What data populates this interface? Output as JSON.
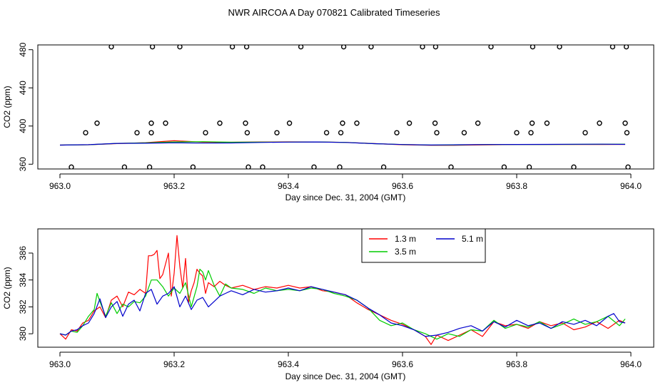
{
  "title": "NWR AIRCOA A  Day 070821  Calibrated Timeseries",
  "chart_data": [
    {
      "type": "line",
      "panel": "top",
      "xlabel": "Day since Dec. 31, 2004 (GMT)",
      "ylabel": "CO2 (ppm)",
      "xlim": [
        963.0,
        964.0
      ],
      "ylim": [
        355,
        485
      ],
      "xticks": [
        963.0,
        963.2,
        963.4,
        963.6,
        963.8,
        964.0
      ],
      "xtick_labels": [
        "963.0",
        "963.2",
        "963.4",
        "963.6",
        "963.8",
        "964.0"
      ],
      "yticks": [
        360,
        400,
        440,
        480
      ],
      "ytick_labels": [
        "360",
        "400",
        "440",
        "480"
      ],
      "grid": false,
      "series": [
        {
          "name": "1.3 m",
          "color": "#ff0000",
          "x": [
            963.0,
            963.05,
            963.1,
            963.15,
            963.2,
            963.25,
            963.3,
            963.35,
            963.4,
            963.45,
            963.5,
            963.55,
            963.6,
            963.65,
            963.7,
            963.75,
            963.8,
            963.85,
            963.9,
            963.95,
            963.99
          ],
          "values": [
            380,
            380.4,
            381.6,
            382.6,
            384.6,
            383.2,
            383.0,
            383.3,
            383.4,
            383.3,
            382.9,
            381.6,
            380.4,
            379.8,
            379.9,
            380.3,
            380.6,
            380.6,
            380.7,
            380.7,
            380.8
          ]
        },
        {
          "name": "3.5 m",
          "color": "#00cc00",
          "x": [
            963.0,
            963.05,
            963.1,
            963.15,
            963.2,
            963.25,
            963.3,
            963.35,
            963.4,
            963.45,
            963.5,
            963.55,
            963.6,
            963.65,
            963.7,
            963.75,
            963.8,
            963.85,
            963.9,
            963.95,
            963.99
          ],
          "values": [
            380,
            380.4,
            381.8,
            382.4,
            383.3,
            383.6,
            383.0,
            383.1,
            383.2,
            383.3,
            382.9,
            381.5,
            380.6,
            380.0,
            380.2,
            380.6,
            380.6,
            380.7,
            380.8,
            380.9,
            381.0
          ]
        },
        {
          "name": "5.1 m",
          "color": "#0000cc",
          "x": [
            963.0,
            963.05,
            963.1,
            963.15,
            963.2,
            963.25,
            963.3,
            963.35,
            963.4,
            963.45,
            963.5,
            963.55,
            963.6,
            963.65,
            963.7,
            963.75,
            963.8,
            963.85,
            963.9,
            963.95,
            963.99
          ],
          "values": [
            380,
            380.5,
            381.8,
            382.0,
            382.4,
            382.1,
            382.3,
            382.8,
            383.2,
            383.3,
            382.8,
            381.5,
            380.6,
            380.1,
            380.4,
            380.6,
            380.7,
            380.8,
            380.9,
            381.0,
            380.8
          ]
        }
      ],
      "flagged_points": {
        "marker": "open-circle",
        "x": [
          963.02,
          963.045,
          963.065,
          963.09,
          963.113,
          963.135,
          963.157,
          963.16,
          963.16,
          963.162,
          963.185,
          963.21,
          963.233,
          963.255,
          963.28,
          963.302,
          963.325,
          963.327,
          963.328,
          963.33,
          963.355,
          963.38,
          963.402,
          963.422,
          963.445,
          963.467,
          963.49,
          963.492,
          963.495,
          963.497,
          963.52,
          963.545,
          963.567,
          963.59,
          963.612,
          963.635,
          963.657,
          963.658,
          963.66,
          963.685,
          963.708,
          963.732,
          963.755,
          963.778,
          963.8,
          963.822,
          963.825,
          963.827,
          963.828,
          963.853,
          963.875,
          963.9,
          963.92,
          963.945,
          963.968,
          963.99,
          963.992,
          963.993,
          963.995
        ],
        "values": [
          357,
          393,
          403,
          483,
          357,
          393,
          357,
          393,
          403,
          483,
          403,
          483,
          357,
          393,
          403,
          483,
          403,
          483,
          393,
          357,
          357,
          393,
          403,
          483,
          357,
          393,
          357,
          393,
          403,
          483,
          403,
          483,
          357,
          393,
          403,
          483,
          403,
          483,
          393,
          357,
          393,
          403,
          483,
          357,
          393,
          357,
          393,
          403,
          483,
          403,
          483,
          357,
          393,
          403,
          483,
          403,
          483,
          393,
          357
        ]
      }
    },
    {
      "type": "line",
      "panel": "bottom",
      "xlabel": "Day since Dec. 31, 2004 (GMT)",
      "ylabel": "CO2 (ppm)",
      "xlim": [
        963.0,
        964.0
      ],
      "ylim": [
        379,
        387.8
      ],
      "xticks": [
        963.0,
        963.2,
        963.4,
        963.6,
        963.8,
        964.0
      ],
      "xtick_labels": [
        "963.0",
        "963.2",
        "963.4",
        "963.6",
        "963.8",
        "964.0"
      ],
      "yticks": [
        380,
        382,
        384,
        386
      ],
      "ytick_labels": [
        "380",
        "382",
        "384",
        "386"
      ],
      "grid": false,
      "legend": {
        "placement": "top-right",
        "entries": [
          "1.3 m",
          "3.5 m",
          "5.1 m"
        ]
      },
      "series": [
        {
          "name": "1.3 m",
          "color": "#ff0000",
          "x": [
            963.0,
            963.01,
            963.02,
            963.03,
            963.04,
            963.05,
            963.06,
            963.07,
            963.08,
            963.09,
            963.1,
            963.11,
            963.12,
            963.13,
            963.14,
            963.15,
            963.155,
            963.16,
            963.165,
            963.17,
            963.175,
            963.18,
            963.185,
            963.19,
            963.195,
            963.2,
            963.205,
            963.21,
            963.215,
            963.22,
            963.225,
            963.23,
            963.235,
            963.24,
            963.245,
            963.25,
            963.255,
            963.26,
            963.27,
            963.28,
            963.29,
            963.3,
            963.32,
            963.34,
            963.36,
            963.38,
            963.4,
            963.42,
            963.44,
            963.46,
            963.48,
            963.5,
            963.52,
            963.54,
            963.56,
            963.58,
            963.6,
            963.62,
            963.64,
            963.65,
            963.66,
            963.68,
            963.7,
            963.72,
            963.74,
            963.76,
            963.78,
            963.8,
            963.82,
            963.84,
            963.86,
            963.88,
            963.9,
            963.92,
            963.94,
            963.96,
            963.98,
            963.99
          ],
          "values": [
            380,
            379.6,
            380.3,
            380.2,
            380.8,
            381.0,
            381.7,
            382.0,
            381.2,
            382.5,
            382.8,
            382.0,
            383.1,
            382.9,
            383.3,
            383.0,
            385.8,
            385.8,
            385.9,
            386.2,
            384.1,
            384.4,
            385.2,
            386.0,
            382.8,
            384.5,
            387.3,
            385.0,
            383.4,
            385.6,
            382.3,
            383.2,
            383.8,
            384.8,
            384.5,
            384.3,
            383.0,
            383.8,
            383.5,
            383.9,
            383.6,
            383.4,
            383.6,
            383.3,
            383.5,
            383.4,
            383.6,
            383.4,
            383.5,
            383.2,
            383.1,
            382.9,
            382.3,
            381.8,
            381.4,
            381.0,
            380.7,
            380.3,
            379.8,
            379.2,
            379.9,
            379.5,
            379.9,
            380.3,
            379.8,
            380.9,
            380.6,
            380.7,
            380.4,
            380.9,
            380.6,
            380.8,
            380.3,
            380.5,
            380.9,
            380.4,
            381.0,
            380.8
          ]
        },
        {
          "name": "3.5 m",
          "color": "#00cc00",
          "x": [
            963.0,
            963.01,
            963.02,
            963.03,
            963.04,
            963.05,
            963.06,
            963.065,
            963.07,
            963.08,
            963.09,
            963.1,
            963.11,
            963.12,
            963.13,
            963.14,
            963.15,
            963.16,
            963.17,
            963.18,
            963.19,
            963.2,
            963.21,
            963.22,
            963.23,
            963.24,
            963.245,
            963.25,
            963.255,
            963.26,
            963.27,
            963.28,
            963.29,
            963.3,
            963.32,
            963.34,
            963.36,
            963.38,
            963.4,
            963.42,
            963.44,
            963.46,
            963.48,
            963.5,
            963.52,
            963.54,
            963.56,
            963.58,
            963.6,
            963.62,
            963.64,
            963.66,
            963.68,
            963.7,
            963.72,
            963.74,
            963.76,
            963.78,
            963.8,
            963.82,
            963.84,
            963.86,
            963.88,
            963.9,
            963.92,
            963.94,
            963.96,
            963.98,
            963.99
          ],
          "values": [
            380,
            379.9,
            380.2,
            380.1,
            380.6,
            381.3,
            381.8,
            383.0,
            382.4,
            381.3,
            382.3,
            381.5,
            382.2,
            382.0,
            382.4,
            382.3,
            382.8,
            384.0,
            384.0,
            383.5,
            382.8,
            383.4,
            383.0,
            383.8,
            382.0,
            383.5,
            384.8,
            384.6,
            384.0,
            384.7,
            383.6,
            382.8,
            383.7,
            383.4,
            383.3,
            383.0,
            383.4,
            383.2,
            383.3,
            383.2,
            383.4,
            383.3,
            383.0,
            382.8,
            382.5,
            381.9,
            381.0,
            380.6,
            380.8,
            380.3,
            380.0,
            379.6,
            380.0,
            379.8,
            380.3,
            380.2,
            381.0,
            380.4,
            380.7,
            380.5,
            380.9,
            380.4,
            380.7,
            381.1,
            380.7,
            380.9,
            381.3,
            380.6,
            381.1
          ]
        },
        {
          "name": "5.1 m",
          "color": "#0000cc",
          "x": [
            963.0,
            963.01,
            963.02,
            963.03,
            963.04,
            963.05,
            963.06,
            963.07,
            963.08,
            963.09,
            963.1,
            963.11,
            963.12,
            963.13,
            963.14,
            963.15,
            963.16,
            963.17,
            963.18,
            963.19,
            963.2,
            963.21,
            963.22,
            963.23,
            963.24,
            963.25,
            963.26,
            963.27,
            963.28,
            963.29,
            963.3,
            963.32,
            963.34,
            963.36,
            963.38,
            963.4,
            963.42,
            963.44,
            963.46,
            963.48,
            963.5,
            963.52,
            963.54,
            963.56,
            963.58,
            963.6,
            963.62,
            963.64,
            963.66,
            963.68,
            963.7,
            963.72,
            963.74,
            963.76,
            963.78,
            963.8,
            963.82,
            963.84,
            963.86,
            963.88,
            963.9,
            963.92,
            963.94,
            963.96,
            963.97,
            963.98,
            963.99
          ],
          "values": [
            380,
            379.9,
            380.2,
            380.3,
            380.6,
            380.8,
            381.5,
            382.6,
            381.2,
            382.0,
            382.4,
            381.3,
            382.2,
            382.5,
            381.7,
            383.0,
            383.3,
            382.2,
            382.8,
            383.0,
            383.5,
            382.0,
            382.8,
            381.8,
            382.5,
            382.7,
            382.0,
            382.4,
            382.8,
            383.0,
            383.2,
            382.9,
            383.3,
            383.1,
            383.2,
            383.4,
            383.2,
            383.5,
            383.3,
            383.1,
            382.9,
            382.5,
            381.9,
            381.4,
            380.8,
            380.6,
            380.3,
            379.8,
            379.9,
            380.1,
            380.4,
            380.6,
            380.2,
            380.9,
            380.5,
            381.0,
            380.6,
            380.8,
            380.4,
            380.9,
            380.7,
            381.0,
            380.6,
            381.3,
            381.5,
            380.9,
            380.8
          ]
        }
      ]
    }
  ]
}
